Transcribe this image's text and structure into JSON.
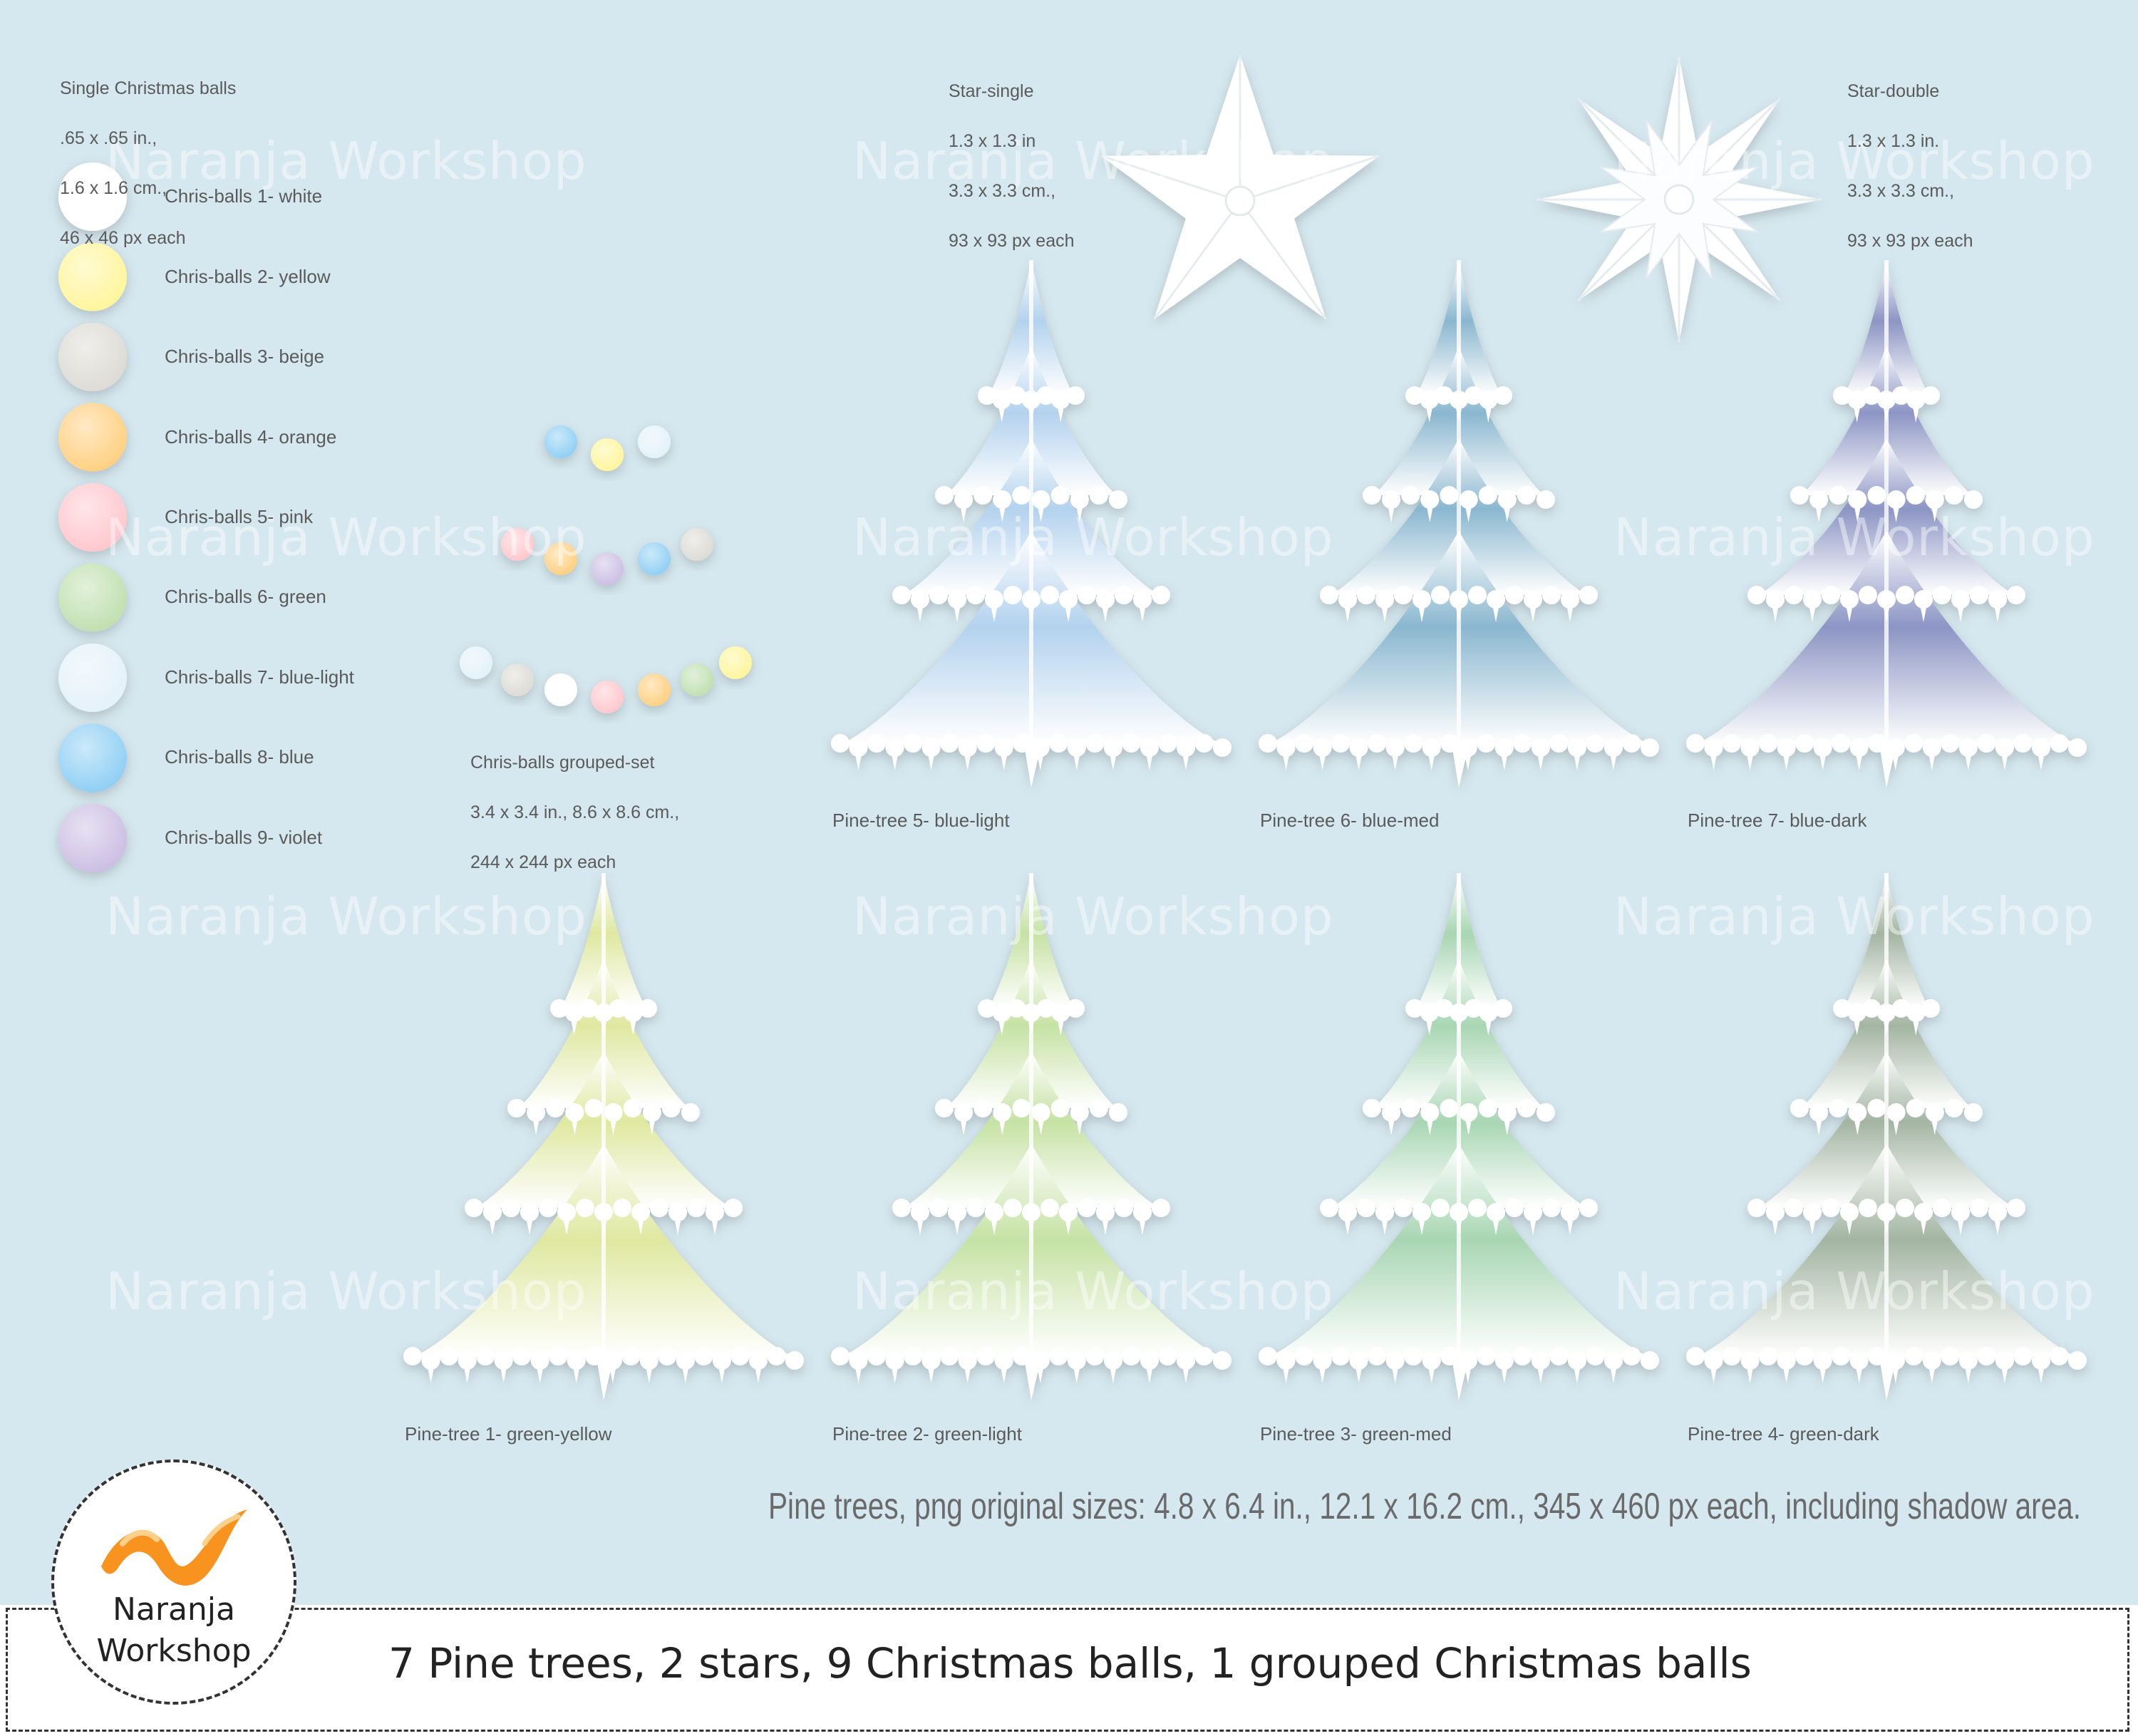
{
  "balls_info": {
    "title": "Single Christmas balls",
    "lines": [
      ".65 x .65 in.,",
      "1.6 x 1.6 cm.,",
      "46 x 46 px each"
    ]
  },
  "balls": [
    {
      "label": "Chris-balls 1- white",
      "color": "#ffffff"
    },
    {
      "label": "Chris-balls 2- yellow",
      "color": "#fff59a"
    },
    {
      "label": "Chris-balls 3- beige",
      "color": "#dcdad3"
    },
    {
      "label": "Chris-balls 4- orange",
      "color": "#ffcf7e"
    },
    {
      "label": "Chris-balls 5- pink",
      "color": "#ffc6cc"
    },
    {
      "label": "Chris-balls 6- green",
      "color": "#bfdfae"
    },
    {
      "label": "Chris-balls 7- blue-light",
      "color": "#e3f1fa"
    },
    {
      "label": "Chris-balls 8- blue",
      "color": "#8dcef4"
    },
    {
      "label": "Chris-balls 9- violet",
      "color": "#cbbde3"
    }
  ],
  "grouped": {
    "title": "Chris-balls grouped-set",
    "lines": [
      "3.4 x 3.4 in., 8.6 x 8.6 cm.,",
      "244 x 244 px each"
    ]
  },
  "star_single": {
    "title": "Star-single",
    "lines": [
      "1.3 x 1.3 in",
      "3.3 x 3.3 cm.,",
      "93 x 93 px each"
    ]
  },
  "star_double": {
    "title": "Star-double",
    "lines": [
      "1.3 x 1.3 in.",
      "3.3 x 3.3 cm.,",
      "93 x 93 px each"
    ]
  },
  "trees": [
    {
      "label": "Pine-tree 5- blue-light",
      "color": "#b3d2ee"
    },
    {
      "label": "Pine-tree 6- blue-med",
      "color": "#8ab7cf"
    },
    {
      "label": "Pine-tree 7- blue-dark",
      "color": "#8c95c4"
    },
    {
      "label": "Pine-tree 1- green-yellow",
      "color": "#dfe8a0"
    },
    {
      "label": "Pine-tree 2- green-light",
      "color": "#c6e2a4"
    },
    {
      "label": "Pine-tree 3- green-med",
      "color": "#a8d6b3"
    },
    {
      "label": "Pine-tree 4- green-dark",
      "color": "#a3b5a2"
    }
  ],
  "sizes_note": "Pine trees, png original sizes: 4.8 x 6.4 in., 12.1 x 16.2 cm., 345 x 460 px  each, including shadow area.",
  "watermark": "Naranja Workshop",
  "logo": {
    "text": "Naranja\nWorkshop",
    "color": "#f7931e"
  },
  "banner": "7 Pine trees, 2 stars, 9 Christmas balls, 1 grouped Christmas balls"
}
